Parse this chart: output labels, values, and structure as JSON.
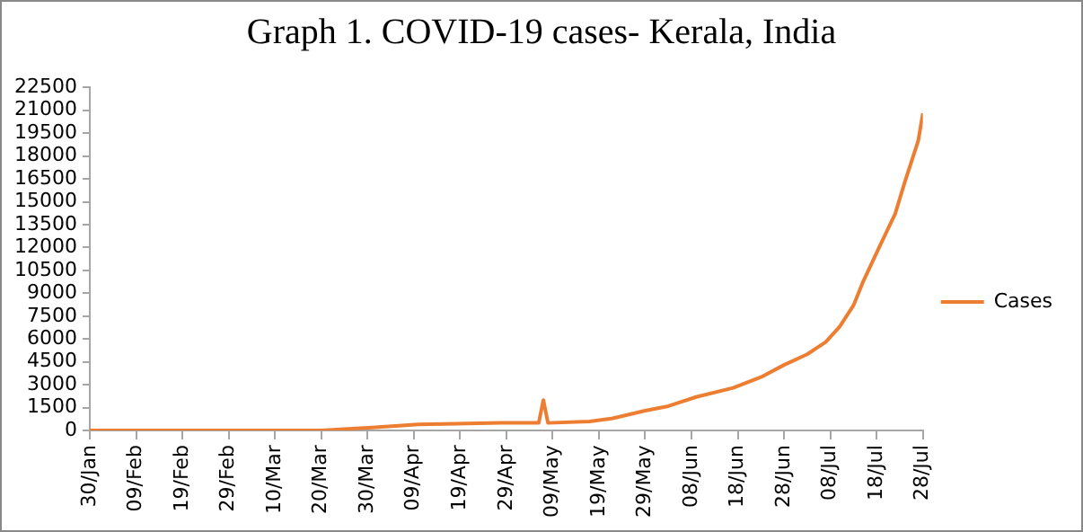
{
  "chart_data": {
    "type": "line",
    "title": "Graph 1. COVID-19  cases- Kerala, India",
    "x": [
      "--01-30",
      "--02-03",
      "--03-08",
      "--03-20",
      "--03-25",
      "--03-31",
      "--04-10",
      "--04-28",
      "--05-06",
      "--05-07",
      "--05-08",
      "--05-17",
      "--05-22",
      "--05-29",
      "--06-03",
      "--06-09",
      "--06-17",
      "--06-23",
      "--06-28",
      "--07-03",
      "--07-07",
      "--07-10",
      "--07-13",
      "--07-15",
      "--07-19",
      "--07-22",
      "--07-24",
      "--07-27",
      "--07-28"
    ],
    "series": [
      {
        "name": "Cases",
        "color": "#ed7d31",
        "values": [
          0,
          0,
          0,
          0,
          100,
          200,
          400,
          500,
          500,
          2000,
          500,
          600,
          800,
          1300,
          1600,
          2200,
          2800,
          3500,
          4300,
          5000,
          5800,
          6800,
          8200,
          9700,
          12300,
          14200,
          16200,
          19000,
          20800
        ]
      }
    ],
    "xlim": [
      "--01-30",
      "--07-28"
    ],
    "xticks": [
      {
        "value": "--01-30",
        "label": "30/Jan"
      },
      {
        "value": "--02-09",
        "label": "09/Feb"
      },
      {
        "value": "--02-19",
        "label": "19/Feb"
      },
      {
        "value": "--02-29",
        "label": "29/Feb"
      },
      {
        "value": "--03-10",
        "label": "10/Mar"
      },
      {
        "value": "--03-20",
        "label": "20/Mar"
      },
      {
        "value": "--03-30",
        "label": "30/Mar"
      },
      {
        "value": "--04-09",
        "label": "09/Apr"
      },
      {
        "value": "--04-19",
        "label": "19/Apr"
      },
      {
        "value": "--04-29",
        "label": "29/Apr"
      },
      {
        "value": "--05-09",
        "label": "09/May"
      },
      {
        "value": "--05-19",
        "label": "19/May"
      },
      {
        "value": "--05-29",
        "label": "29/May"
      },
      {
        "value": "--06-08",
        "label": "08/Jun"
      },
      {
        "value": "--06-18",
        "label": "18/Jun"
      },
      {
        "value": "--06-28",
        "label": "28/Jun"
      },
      {
        "value": "--07-08",
        "label": "08/Jul"
      },
      {
        "value": "--07-18",
        "label": "18/Jul"
      },
      {
        "value": "--07-28",
        "label": "28/Jul"
      }
    ],
    "ylim": [
      0,
      22500
    ],
    "yticks": [
      0,
      1500,
      3000,
      4500,
      6000,
      7500,
      9000,
      10500,
      12000,
      13500,
      15000,
      16500,
      18000,
      19500,
      21000,
      22500
    ],
    "grid": false,
    "legend": "right",
    "marker": "none",
    "line_style": "solid"
  }
}
